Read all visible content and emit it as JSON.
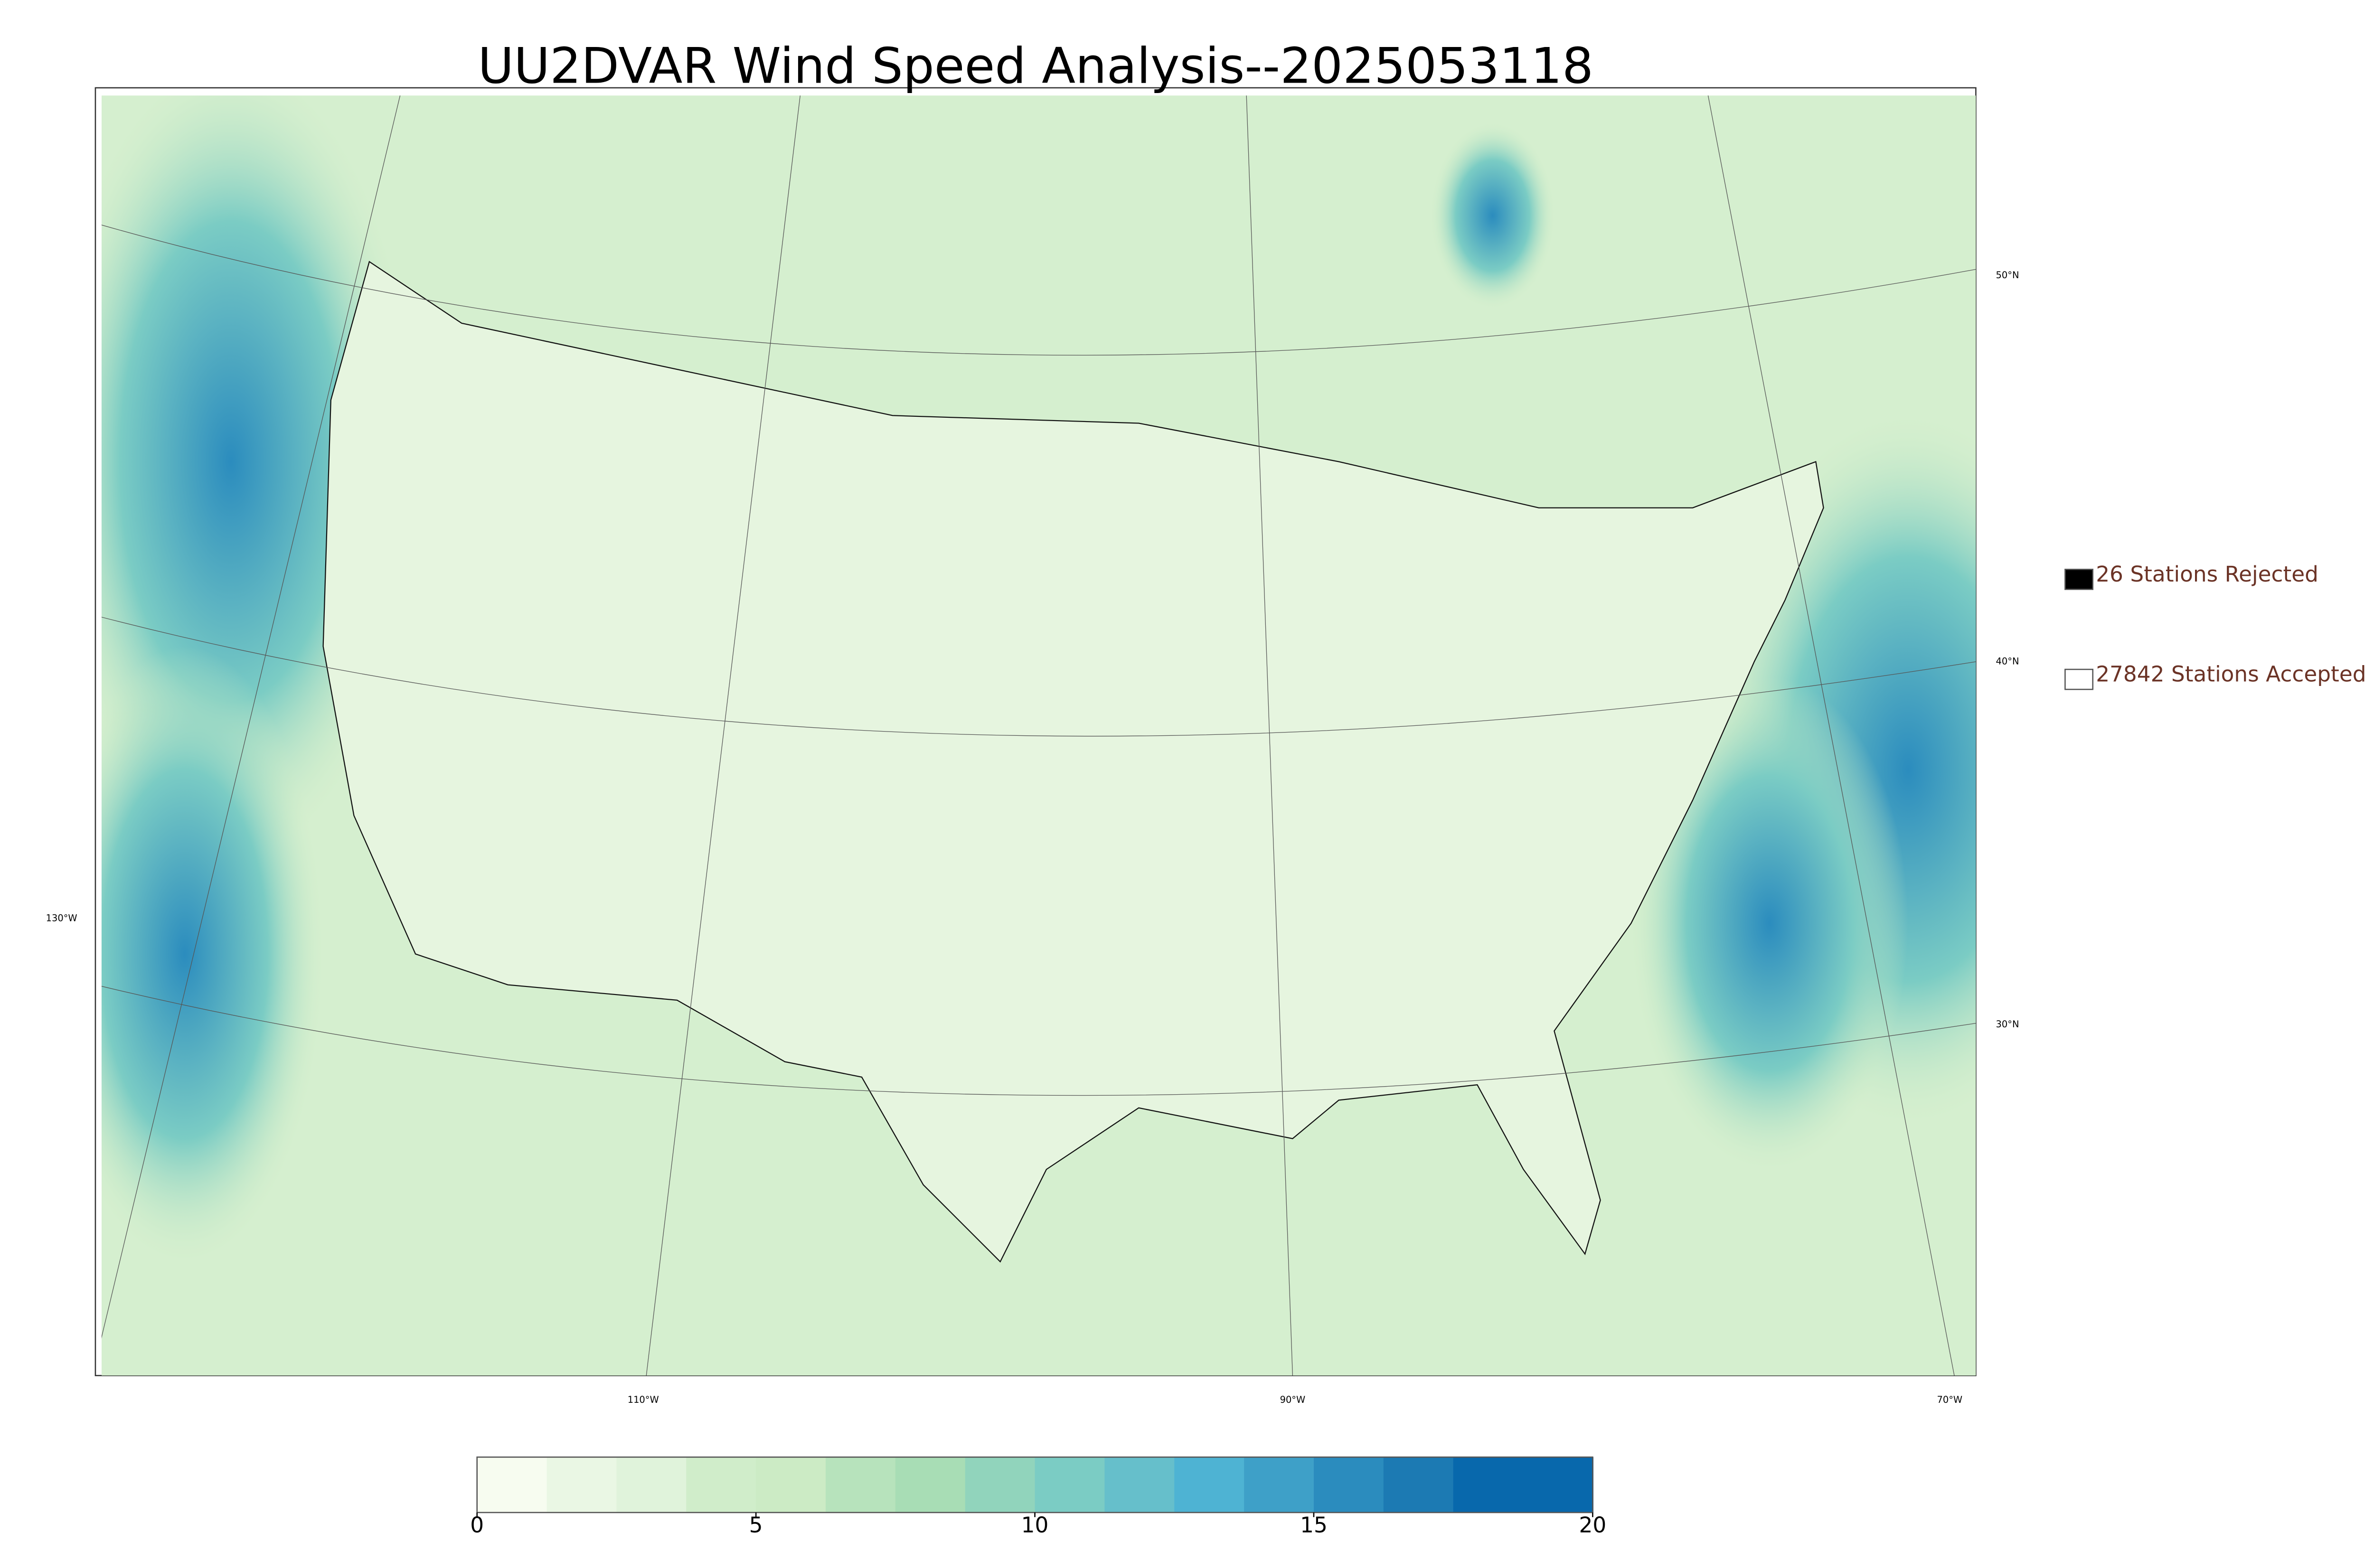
{
  "title": "UU2DVAR Wind Speed Analysis--2025053118",
  "legend": {
    "items": [
      {
        "label": "26 Stations Rejected",
        "color": "#000000"
      },
      {
        "label": "27842 Stations Accepted",
        "color": "#ffffff"
      }
    ]
  },
  "graticule": {
    "latitudes": [
      "50°N",
      "40°N",
      "30°N"
    ],
    "longitudes": [
      "130°W",
      "110°W",
      "90°W",
      "70°W"
    ]
  },
  "colorbar": {
    "lim": [
      0,
      20
    ],
    "ticks": [
      0,
      5,
      10,
      15,
      20
    ]
  }
}
